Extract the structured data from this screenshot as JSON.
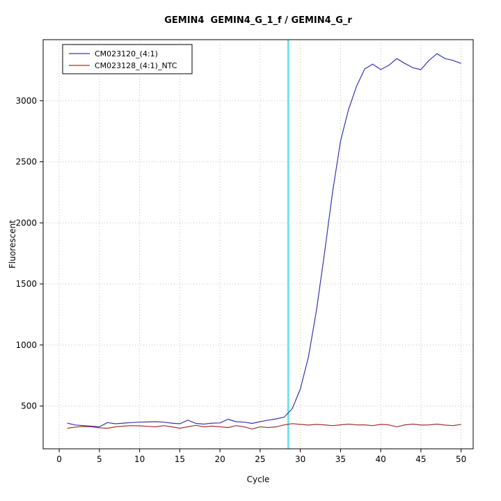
{
  "title": "GEMIN4  GEMIN4_G_1_f / GEMIN4_G_r",
  "chart_data": {
    "type": "line",
    "title": "GEMIN4  GEMIN4_G_1_f / GEMIN4_G_r",
    "xlabel": "Cycle",
    "ylabel": "Fluorescent",
    "xlim": [
      -2,
      51.5
    ],
    "ylim": [
      150,
      3500
    ],
    "xticks": [
      0,
      5,
      10,
      15,
      20,
      25,
      30,
      35,
      40,
      45,
      50
    ],
    "yticks": [
      500,
      1000,
      1500,
      2000,
      2500,
      3000
    ],
    "grid": "dotted",
    "grid_color": "#c0c0c0",
    "axis_color": "#000000",
    "legend_position": "top-left",
    "threshold_line": {
      "x": 28.5,
      "color": "#6fe3ee"
    },
    "x": [
      1,
      2,
      3,
      4,
      5,
      6,
      7,
      8,
      9,
      10,
      11,
      12,
      13,
      14,
      15,
      16,
      17,
      18,
      19,
      20,
      21,
      22,
      23,
      24,
      25,
      26,
      27,
      28,
      29,
      30,
      31,
      32,
      33,
      34,
      35,
      36,
      37,
      38,
      39,
      40,
      41,
      42,
      43,
      44,
      45,
      46,
      47,
      48,
      49,
      50
    ],
    "series": [
      {
        "name": "CM023120_(4:1)",
        "color": "#3535ae",
        "values": [
          360,
          345,
          340,
          335,
          330,
          365,
          355,
          360,
          365,
          368,
          370,
          372,
          368,
          360,
          355,
          385,
          358,
          352,
          360,
          362,
          392,
          372,
          368,
          358,
          372,
          385,
          395,
          410,
          480,
          640,
          900,
          1280,
          1750,
          2250,
          2670,
          2930,
          3120,
          3260,
          3300,
          3255,
          3290,
          3345,
          3305,
          3270,
          3255,
          3330,
          3385,
          3345,
          3330,
          3305
        ]
      },
      {
        "name": "CM023128_(4:1)_NTC",
        "color": "#a03232",
        "values": [
          318,
          328,
          333,
          330,
          322,
          318,
          330,
          336,
          340,
          338,
          334,
          330,
          340,
          330,
          318,
          330,
          342,
          330,
          336,
          330,
          324,
          340,
          330,
          312,
          330,
          324,
          330,
          346,
          356,
          350,
          344,
          350,
          346,
          340,
          346,
          352,
          346,
          346,
          340,
          350,
          346,
          330,
          346,
          352,
          344,
          346,
          352,
          344,
          340,
          350
        ]
      }
    ]
  }
}
